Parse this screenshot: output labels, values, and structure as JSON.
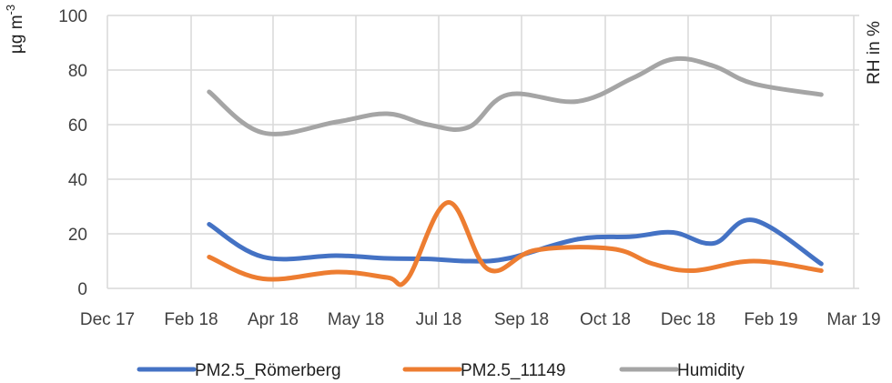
{
  "chart_data": {
    "type": "line",
    "title": "",
    "xlabel": "",
    "ylabel": "µg m",
    "ylabel_superscript": "-3",
    "y2label": "RH in %",
    "ylim": [
      0,
      100
    ],
    "yticks": [
      "0",
      "20",
      "40",
      "60",
      "80",
      "100"
    ],
    "xticks": [
      "Dec 17",
      "Feb 18",
      "Apr 18",
      "May 18",
      "Jul 18",
      "Sep 18",
      "Oct 18",
      "Dec 18",
      "Feb 19",
      "Mar 19"
    ],
    "grid": "vertical-and-horizontal",
    "legend": "bottom",
    "series": [
      {
        "name": "PM2.5_Römerberg",
        "color": "#4472c4",
        "x": [
          "2018-02-14",
          "2018-03-25",
          "2018-04-24",
          "2018-05-24",
          "2018-06-23",
          "2018-07-23",
          "2018-08-22",
          "2018-09-21",
          "2018-10-21",
          "2018-11-20",
          "2018-12-20",
          "2019-01-19",
          "2019-02-18"
        ],
        "values": [
          23.5,
          11.5,
          12,
          11,
          10.8,
          10,
          11,
          18,
          19,
          20.5,
          16.5,
          25,
          9
        ]
      },
      {
        "name": "PM2.5_11149",
        "color": "#ed7d31",
        "x": [
          "2018-02-14",
          "2018-03-25",
          "2018-04-24",
          "2018-05-24",
          "2018-06-08",
          "2018-07-08",
          "2018-08-07",
          "2018-09-06",
          "2018-10-06",
          "2018-11-05",
          "2018-12-05",
          "2019-01-19",
          "2019-02-18"
        ],
        "values": [
          11.5,
          3.5,
          6,
          4,
          3.5,
          31.5,
          7,
          14,
          14.5,
          9,
          6.5,
          10,
          6.5
        ]
      },
      {
        "name": "Humidity",
        "color": "#a5a5a5",
        "x": [
          "2018-02-14",
          "2018-03-25",
          "2018-04-24",
          "2018-05-24",
          "2018-06-23",
          "2018-07-23",
          "2018-08-22",
          "2018-09-21",
          "2018-10-21",
          "2018-11-20",
          "2018-12-20",
          "2019-01-19",
          "2019-02-18"
        ],
        "values": [
          72,
          57,
          61,
          64,
          60,
          59,
          71,
          68.5,
          77,
          84,
          81.5,
          75,
          71
        ]
      }
    ]
  }
}
